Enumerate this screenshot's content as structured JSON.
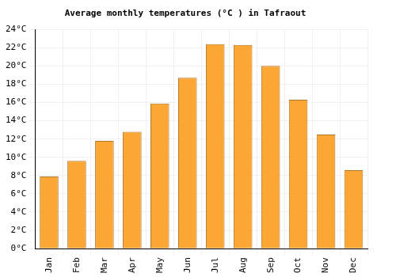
{
  "chart_data": {
    "type": "bar",
    "title": "Average monthly temperatures (°C ) in Tafraout",
    "categories": [
      "Jan",
      "Feb",
      "Mar",
      "Apr",
      "May",
      "Jun",
      "Jul",
      "Aug",
      "Sep",
      "Oct",
      "Nov",
      "Dec"
    ],
    "values": [
      7.9,
      9.6,
      11.8,
      12.8,
      15.9,
      18.7,
      22.4,
      22.3,
      20.0,
      16.3,
      12.5,
      8.6
    ],
    "color": "#fca634",
    "ylim": [
      0,
      24
    ],
    "yticks": [
      {
        "value": 0,
        "label": "0°C"
      },
      {
        "value": 2,
        "label": "2°C"
      },
      {
        "value": 4,
        "label": "4°C"
      },
      {
        "value": 6,
        "label": "6°C"
      },
      {
        "value": 8,
        "label": "8°C"
      },
      {
        "value": 10,
        "label": "10°C"
      },
      {
        "value": 12,
        "label": "12°C"
      },
      {
        "value": 14,
        "label": "14°C"
      },
      {
        "value": 16,
        "label": "16°C"
      },
      {
        "value": 18,
        "label": "18°C"
      },
      {
        "value": 20,
        "label": "20°C"
      },
      {
        "value": 22,
        "label": "22°C"
      },
      {
        "value": 24,
        "label": "24°C"
      }
    ],
    "grid": true
  }
}
